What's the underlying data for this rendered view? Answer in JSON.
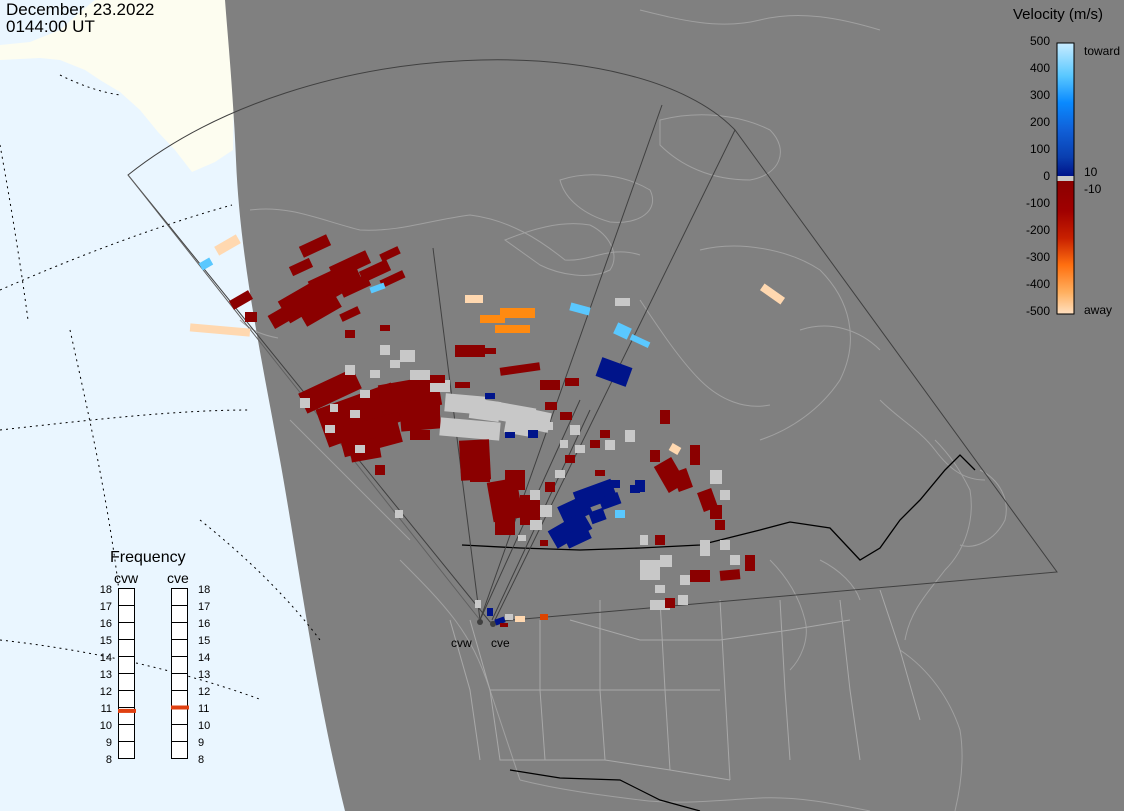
{
  "header": {
    "date": "December, 23.2022",
    "time": "0144:00 UT"
  },
  "colorbar": {
    "title": "Velocity (m/s)",
    "ticks": [
      "500",
      "400",
      "300",
      "200",
      "100",
      "0",
      "-100",
      "-200",
      "-300",
      "-400",
      "-500"
    ],
    "tick_values": [
      500,
      400,
      300,
      200,
      100,
      0,
      -100,
      -200,
      -300,
      -400,
      -500
    ],
    "label_toward": "toward",
    "label_away": "away",
    "label_pos": "10",
    "label_neg": "-10",
    "colors": [
      "#c8ecff",
      "#5ac8ff",
      "#0a8aff",
      "#1060d8",
      "#0a3fb0",
      "#00148a",
      "#8b0000",
      "#b01000",
      "#dd4400",
      "#ff8a10",
      "#ffd8b0"
    ],
    "ground_scatter_color": "#c8c8c8"
  },
  "frequency": {
    "title": "Frequency",
    "radars": [
      {
        "name": "cvw",
        "freq_mhz": 10.8
      },
      {
        "name": "cve",
        "freq_mhz": 11.0
      }
    ],
    "scale": [
      "18",
      "17",
      "16",
      "15",
      "14",
      "13",
      "12",
      "11",
      "10",
      "9",
      "8"
    ],
    "indicator_color": "#e04010"
  },
  "sites": [
    {
      "label": "cvw"
    },
    {
      "label": "cve"
    }
  ],
  "colors": {
    "night_side": "#808080",
    "day_ocean": "#eaf6ff",
    "day_land": "#fdfdf0",
    "coastline": "#a8a8a8"
  }
}
